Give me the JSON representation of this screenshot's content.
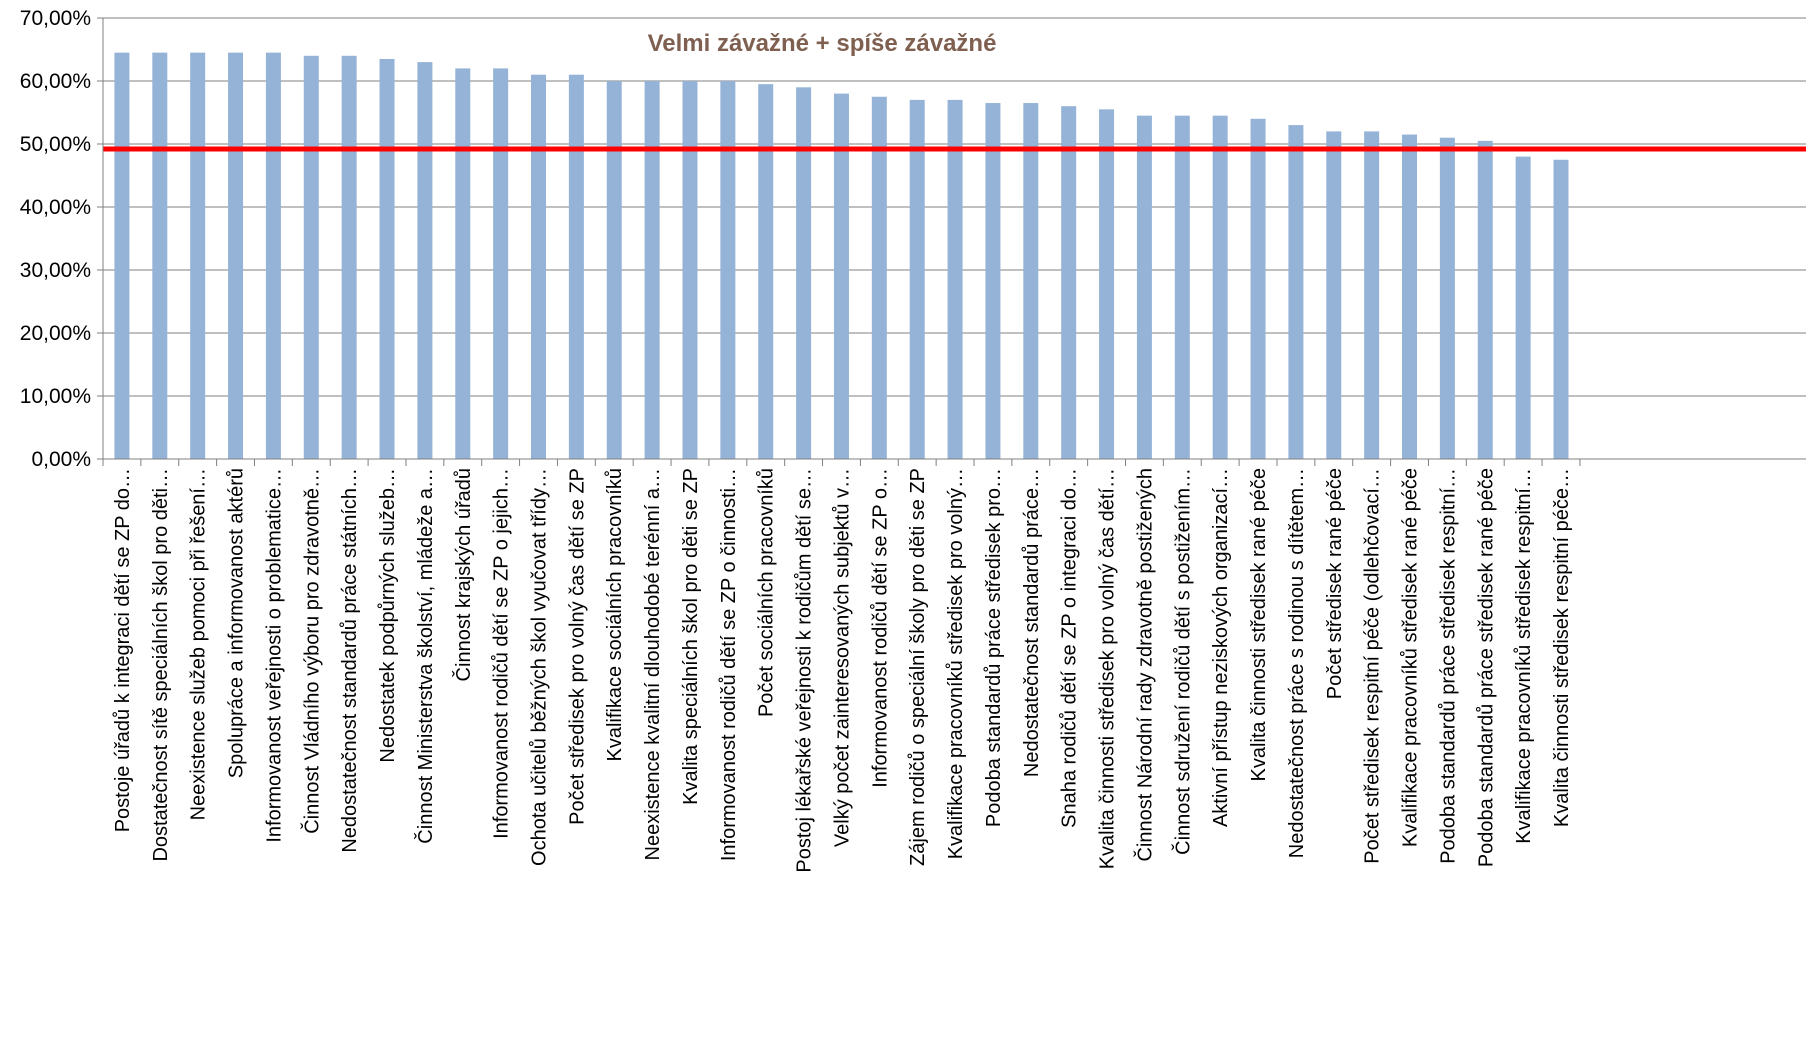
{
  "chart_data": {
    "type": "bar",
    "title": "Velmi závažné + spíše závažné",
    "xlabel": "",
    "ylabel": "",
    "ylim": [
      0,
      70
    ],
    "y_ticks": [
      "0,00%",
      "10,00%",
      "20,00%",
      "30,00%",
      "40,00%",
      "50,00%",
      "60,00%",
      "70,00%"
    ],
    "grid": true,
    "reference_line": 49.2,
    "categories": [
      "Postoje úřadů k integraci dětí se ZP do…",
      "Dostatečnost sítě speciálních škol pro děti…",
      "Neexistence služeb pomoci při řešení…",
      "Spolupráce a informovanost aktérů",
      "Informovanost veřejnosti o problematice…",
      "Činnost Vládního výboru pro zdravotně…",
      "Nedostatečnost standardů práce státních…",
      "Nedostatek podpůrných služeb…",
      "Činnost Ministerstva školství, mládeže a…",
      "Činnost krajských úřadů",
      "Informovanost rodičů dětí se ZP o jejich…",
      "Ochota učitelů běžných škol vyučovat třídy…",
      "Počet středisek pro volný čas dětí se ZP",
      "Kvalifikace sociálních pracovníků",
      "Neexistence kvalitní dlouhodobé terénní a…",
      "Kvalita speciálních škol pro děti se ZP",
      "Informovanost rodičů dětí se ZP o činnosti…",
      "Počet sociálních pracovníků",
      "Postoj lékařské veřejnosti k rodičům dětí se…",
      "Velký počet zainteresovaných subjektů v…",
      "Informovanost rodičů dětí se ZP o…",
      "Zájem rodičů o speciální školy pro děti se ZP",
      "Kvalifikace pracovníků středisek pro volný…",
      "Podoba standardů práce středisek pro…",
      "Nedostatečnost standardů práce…",
      "Snaha rodičů dětí se ZP o integraci do…",
      "Kvalita činnosti středisek pro volný čas dětí…",
      "Činnost Národní rady zdravotně postižených",
      "Činnost sdružení rodičů dětí s postižením…",
      "Aktivní přístup neziskových organizací…",
      "Kvalita činnosti středisek rané péče",
      "Nedostatečnost práce s rodinou s dítětem…",
      "Počet středisek rané péče",
      "Počet středisek respitní péče (odlehčovací…",
      "Kvalifikace pracovníků středisek rané péče",
      "Podoba standardů práce středisek respitní…",
      "Podoba standardů práce středisek rané péče",
      "Kvalifikace pracovníků středisek respitní…",
      "Kvalita činnosti středisek respitní péče…"
    ],
    "values": [
      64.5,
      64.5,
      64.5,
      64.5,
      64.5,
      64.0,
      64.0,
      63.5,
      63.0,
      62.0,
      62.0,
      61.0,
      61.0,
      60.0,
      60.0,
      60.0,
      60.0,
      59.5,
      59.0,
      58.0,
      57.5,
      57.0,
      57.0,
      56.5,
      56.5,
      56.0,
      55.5,
      54.5,
      54.5,
      54.5,
      54.0,
      53.0,
      52.0,
      52.0,
      51.5,
      51.0,
      50.5,
      48.0,
      47.5
    ],
    "colors": {
      "bar": "#95B3D7",
      "reference_line": "#FF0000",
      "title": "#7F6050",
      "grid": "#808080",
      "axis": "#808080"
    }
  }
}
